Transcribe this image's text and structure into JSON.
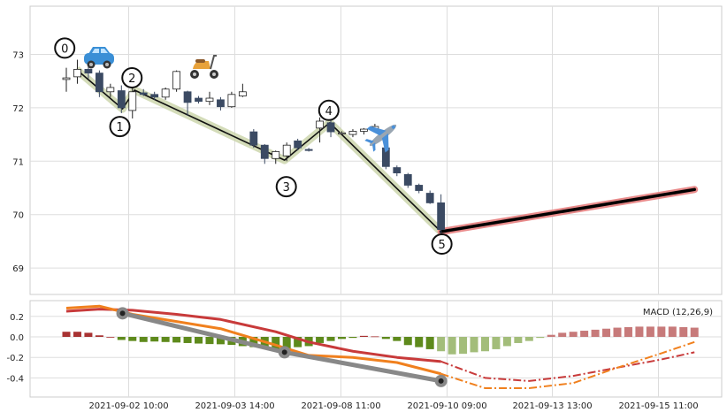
{
  "chart_data": [
    {
      "type": "candlestick",
      "panel": "price",
      "grid": true,
      "ylim": [
        68.5,
        73.9
      ],
      "yticks": [
        "69",
        "70",
        "71",
        "72",
        "73"
      ],
      "candles": [
        {
          "o": 72.53,
          "h": 72.75,
          "l": 72.3,
          "c": 72.56
        },
        {
          "o": 72.58,
          "h": 72.9,
          "l": 72.45,
          "c": 72.72
        },
        {
          "o": 72.72,
          "h": 72.85,
          "l": 72.55,
          "c": 72.65
        },
        {
          "o": 72.65,
          "h": 72.7,
          "l": 72.2,
          "c": 72.3
        },
        {
          "o": 72.3,
          "h": 72.45,
          "l": 72.2,
          "c": 72.38
        },
        {
          "o": 72.32,
          "h": 72.42,
          "l": 71.9,
          "c": 72.0
        },
        {
          "o": 71.95,
          "h": 72.4,
          "l": 71.8,
          "c": 72.3
        },
        {
          "o": 72.28,
          "h": 72.35,
          "l": 72.22,
          "c": 72.25
        },
        {
          "o": 72.25,
          "h": 72.3,
          "l": 72.15,
          "c": 72.2
        },
        {
          "o": 72.2,
          "h": 72.38,
          "l": 72.15,
          "c": 72.35
        },
        {
          "o": 72.35,
          "h": 72.7,
          "l": 72.3,
          "c": 72.68
        },
        {
          "o": 72.3,
          "h": 72.32,
          "l": 71.85,
          "c": 72.1
        },
        {
          "o": 72.18,
          "h": 72.22,
          "l": 72.08,
          "c": 72.12
        },
        {
          "o": 72.12,
          "h": 72.3,
          "l": 72.05,
          "c": 72.18
        },
        {
          "o": 72.15,
          "h": 72.2,
          "l": 71.95,
          "c": 72.02
        },
        {
          "o": 72.02,
          "h": 72.3,
          "l": 72.0,
          "c": 72.25
        },
        {
          "o": 72.22,
          "h": 72.45,
          "l": 72.2,
          "c": 72.3
        },
        {
          "o": 71.55,
          "h": 71.6,
          "l": 71.25,
          "c": 71.3
        },
        {
          "o": 71.3,
          "h": 71.32,
          "l": 70.95,
          "c": 71.05
        },
        {
          "o": 71.05,
          "h": 71.2,
          "l": 70.95,
          "c": 71.18
        },
        {
          "o": 71.1,
          "h": 71.35,
          "l": 71.0,
          "c": 71.3
        },
        {
          "o": 71.38,
          "h": 71.42,
          "l": 71.2,
          "c": 71.25
        },
        {
          "o": 71.22,
          "h": 71.25,
          "l": 71.18,
          "c": 71.2
        },
        {
          "o": 71.62,
          "h": 71.82,
          "l": 71.35,
          "c": 71.75
        },
        {
          "o": 71.72,
          "h": 71.85,
          "l": 71.45,
          "c": 71.55
        },
        {
          "o": 71.52,
          "h": 71.56,
          "l": 71.5,
          "c": 71.53
        },
        {
          "o": 71.5,
          "h": 71.6,
          "l": 71.45,
          "c": 71.56
        },
        {
          "o": 71.56,
          "h": 71.62,
          "l": 71.5,
          "c": 71.6
        },
        {
          "o": 71.6,
          "h": 71.7,
          "l": 71.55,
          "c": 71.65
        },
        {
          "o": 71.25,
          "h": 71.3,
          "l": 70.85,
          "c": 70.9
        },
        {
          "o": 70.88,
          "h": 70.92,
          "l": 70.72,
          "c": 70.78
        },
        {
          "o": 70.75,
          "h": 70.78,
          "l": 70.5,
          "c": 70.55
        },
        {
          "o": 70.55,
          "h": 70.58,
          "l": 70.4,
          "c": 70.45
        },
        {
          "o": 70.4,
          "h": 70.45,
          "l": 70.2,
          "c": 70.22
        },
        {
          "o": 70.22,
          "h": 70.38,
          "l": 69.65,
          "c": 69.72
        }
      ],
      "zigzag": [
        {
          "i": 0.9,
          "y": 72.72,
          "label": "0"
        },
        {
          "i": 5.1,
          "y": 71.98,
          "label": "1"
        },
        {
          "i": 6.2,
          "y": 72.33,
          "label": "2"
        },
        {
          "i": 19.8,
          "y": 71.02,
          "label": "3"
        },
        {
          "i": 23.9,
          "y": 71.72,
          "label": "4"
        },
        {
          "i": 34.0,
          "y": 69.68,
          "label": "5"
        }
      ],
      "projection": [
        {
          "i": 34.0,
          "y": 69.68
        },
        {
          "i": 57.0,
          "y": 70.47
        }
      ]
    },
    {
      "type": "macd",
      "panel": "indicator",
      "grid": true,
      "legend": "MACD (12,26,9)",
      "ylim": [
        -0.52,
        0.36
      ],
      "yticks": [
        "0.2",
        "0.0",
        "-0.2",
        "-0.4"
      ],
      "xticks": [
        "2021-09-02 10:00",
        "2021-09-03 14:00",
        "2021-09-08 11:00",
        "2021-09-10 09:00",
        "2021-09-13 13:00",
        "2021-09-15 11:00"
      ],
      "hist": [
        0.05,
        0.05,
        0.04,
        0.015,
        0.0,
        -0.03,
        -0.04,
        -0.05,
        -0.045,
        -0.05,
        -0.055,
        -0.06,
        -0.065,
        -0.07,
        -0.072,
        -0.078,
        -0.09,
        -0.1,
        -0.11,
        -0.12,
        -0.125,
        -0.1,
        -0.09,
        -0.06,
        -0.04,
        -0.02,
        -0.01,
        0.01,
        0.005,
        -0.02,
        -0.04,
        -0.08,
        -0.1,
        -0.12,
        -0.14,
        -0.17,
        -0.165,
        -0.15,
        -0.14,
        -0.12,
        -0.09,
        -0.06,
        -0.04,
        -0.01,
        0.02,
        0.04,
        0.05,
        0.06,
        0.07,
        0.08,
        0.09,
        0.095,
        0.1,
        0.1,
        0.1,
        0.1,
        0.095,
        0.09
      ],
      "macd_line": [
        [
          0,
          0.28
        ],
        [
          3,
          0.3
        ],
        [
          6,
          0.22
        ],
        [
          10,
          0.15
        ],
        [
          14,
          0.08
        ],
        [
          19,
          -0.08
        ],
        [
          22,
          -0.18
        ],
        [
          26,
          -0.2
        ],
        [
          30,
          -0.25
        ],
        [
          34,
          -0.36
        ],
        [
          38,
          -0.5
        ],
        [
          42,
          -0.5
        ],
        [
          46,
          -0.45
        ],
        [
          50,
          -0.3
        ],
        [
          54,
          -0.16
        ],
        [
          57,
          -0.05
        ]
      ],
      "signal_line": [
        [
          0,
          0.25
        ],
        [
          3,
          0.27
        ],
        [
          6,
          0.26
        ],
        [
          10,
          0.22
        ],
        [
          14,
          0.17
        ],
        [
          19,
          0.05
        ],
        [
          22,
          -0.05
        ],
        [
          26,
          -0.14
        ],
        [
          30,
          -0.2
        ],
        [
          34,
          -0.24
        ],
        [
          38,
          -0.4
        ],
        [
          42,
          -0.43
        ],
        [
          46,
          -0.38
        ],
        [
          50,
          -0.3
        ],
        [
          54,
          -0.22
        ],
        [
          57,
          -0.15
        ]
      ],
      "divergence_points": [
        {
          "i": 5.1,
          "y": 0.23
        },
        {
          "i": 19.8,
          "y": -0.15
        },
        {
          "i": 34.0,
          "y": -0.43
        }
      ]
    }
  ]
}
